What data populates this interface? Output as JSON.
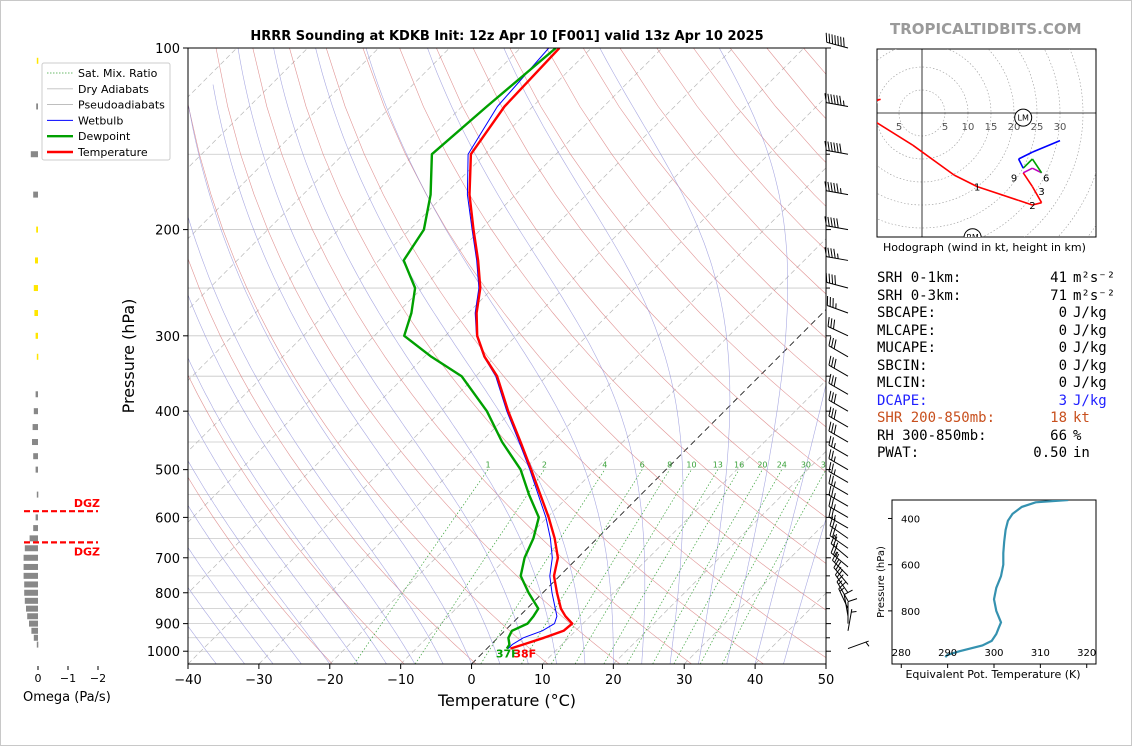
{
  "brand": "TROPICALTIDBITS.COM",
  "colors": {
    "temperature": "#ff0000",
    "dewpoint": "#00a000",
    "wetbulb": "#0000ff",
    "dry_adiabat": "#d97a7a",
    "pseudoadiabat": "#8c8cd8",
    "mixing_ratio": "#3aa23a",
    "dgz": "#ff0000",
    "theta_e": "#3592b0",
    "shear": "#c8501e",
    "dcape": "#2020ff",
    "brand": "#9a9a9a"
  },
  "chart_data": [
    {
      "type": "line",
      "name": "skew-t",
      "title": "HRRR Sounding at KDKB Init: 12z Apr 10 [F001] valid 13z Apr 10 2025",
      "xlabel": "Temperature (°C)",
      "ylabel": "Pressure (hPa)",
      "xlim": [
        -40,
        50
      ],
      "ylim": [
        1050,
        100
      ],
      "y_log_scale": true,
      "skew": true,
      "x_ticks": [
        "−40",
        "−30",
        "−20",
        "−10",
        "0",
        "10",
        "20",
        "30",
        "40",
        "50"
      ],
      "y_ticks": [
        "100",
        "200",
        "300",
        "400",
        "500",
        "600",
        "700",
        "800",
        "900",
        "1000"
      ],
      "legend": {
        "position": "upper-left",
        "entries": [
          "Sat. Mix. Ratio",
          "Dry Adiabats",
          "Pseudoadiabats",
          "Wetbulb",
          "Dewpoint",
          "Temperature"
        ]
      },
      "mixing_ratio_labels": [
        "1",
        "2",
        "4",
        "6",
        "8",
        "10",
        "13",
        "16",
        "20",
        "24",
        "30",
        "36"
      ],
      "surface_labels": {
        "dewpoint": "37F",
        "temperature": "38F"
      },
      "series": [
        {
          "name": "Temperature",
          "points": [
            [
              990,
              3.3
            ],
            [
              975,
              4.5
            ],
            [
              950,
              6.5
            ],
            [
              925,
              8.3
            ],
            [
              900,
              8.5
            ],
            [
              875,
              6.5
            ],
            [
              850,
              4.8
            ],
            [
              800,
              2.0
            ],
            [
              750,
              -0.8
            ],
            [
              700,
              -2.8
            ],
            [
              650,
              -6.0
            ],
            [
              600,
              -9.8
            ],
            [
              550,
              -14.2
            ],
            [
              500,
              -19.0
            ],
            [
              450,
              -24.4
            ],
            [
              400,
              -30.5
            ],
            [
              350,
              -37.0
            ],
            [
              325,
              -41.5
            ],
            [
              300,
              -45.5
            ],
            [
              275,
              -48.8
            ],
            [
              250,
              -51.8
            ],
            [
              225,
              -56.0
            ],
            [
              200,
              -61.0
            ],
            [
              175,
              -66.5
            ],
            [
              150,
              -72.0
            ],
            [
              125,
              -74.0
            ],
            [
              100,
              -74.5
            ]
          ]
        },
        {
          "name": "Wetbulb",
          "points": [
            [
              990,
              3.0
            ],
            [
              975,
              3.0
            ],
            [
              950,
              3.6
            ],
            [
              925,
              5.3
            ],
            [
              900,
              6.0
            ],
            [
              875,
              5.3
            ],
            [
              850,
              4.0
            ],
            [
              800,
              1.3
            ],
            [
              750,
              -1.4
            ],
            [
              700,
              -3.6
            ],
            [
              650,
              -6.6
            ],
            [
              600,
              -10.2
            ],
            [
              550,
              -14.5
            ],
            [
              500,
              -19.2
            ],
            [
              450,
              -24.6
            ],
            [
              400,
              -30.7
            ],
            [
              350,
              -37.2
            ],
            [
              325,
              -41.6
            ],
            [
              300,
              -45.6
            ],
            [
              275,
              -49.0
            ],
            [
              250,
              -52.0
            ],
            [
              225,
              -56.2
            ],
            [
              200,
              -61.2
            ],
            [
              175,
              -66.8
            ],
            [
              150,
              -72.4
            ],
            [
              125,
              -75.0
            ],
            [
              100,
              -76.0
            ]
          ]
        },
        {
          "name": "Dewpoint",
          "points": [
            [
              990,
              2.8
            ],
            [
              975,
              2.6
            ],
            [
              950,
              1.5
            ],
            [
              925,
              1.0
            ],
            [
              900,
              2.2
            ],
            [
              875,
              2.0
            ],
            [
              850,
              1.6
            ],
            [
              800,
              -2.0
            ],
            [
              750,
              -5.5
            ],
            [
              700,
              -7.5
            ],
            [
              650,
              -9.0
            ],
            [
              600,
              -11.2
            ],
            [
              550,
              -15.8
            ],
            [
              500,
              -20.5
            ],
            [
              450,
              -27.0
            ],
            [
              400,
              -33.5
            ],
            [
              350,
              -42.0
            ],
            [
              325,
              -49.0
            ],
            [
              300,
              -55.8
            ],
            [
              275,
              -58.0
            ],
            [
              250,
              -61.0
            ],
            [
              225,
              -66.5
            ],
            [
              200,
              -68.0
            ],
            [
              175,
              -72.0
            ],
            [
              150,
              -77.5
            ],
            [
              125,
              -76.5
            ],
            [
              100,
              -75.0
            ]
          ]
        }
      ]
    },
    {
      "type": "line",
      "name": "hodograph",
      "caption": "Hodograph (wind in kt, height in km)",
      "ring_labels": [
        "5",
        "5",
        "10",
        "15",
        "20",
        "25",
        "30"
      ],
      "points": [
        [
          -9,
          3
        ],
        [
          -12,
          2
        ],
        [
          -10,
          -2
        ],
        [
          -2,
          -7
        ],
        [
          7,
          -13.5
        ],
        [
          12,
          -16
        ],
        [
          21,
          -19
        ],
        [
          24,
          -20
        ],
        [
          26,
          -19.5
        ],
        [
          24,
          -16
        ],
        [
          22,
          -13
        ],
        [
          24,
          -12
        ],
        [
          26,
          -13
        ],
        [
          24,
          -10
        ],
        [
          22,
          -12
        ],
        [
          21,
          -10
        ],
        [
          24,
          -8.5
        ],
        [
          30,
          -6
        ]
      ],
      "height_labels": [
        {
          "label": "1",
          "u": 12,
          "v": -16
        },
        {
          "label": "2",
          "u": 24,
          "v": -20
        },
        {
          "label": "3",
          "u": 26,
          "v": -17
        },
        {
          "label": "6",
          "u": 27,
          "v": -14
        },
        {
          "label": "9",
          "u": 20,
          "v": -14
        }
      ],
      "markers": [
        {
          "label": "LM",
          "u": 22,
          "v": -1
        },
        {
          "label": "RM",
          "u": 11,
          "v": -27
        }
      ]
    },
    {
      "type": "line",
      "name": "theta-e",
      "xlabel": "Equivalent Pot. Temperature (K)",
      "ylabel": "Pressure (hPa)",
      "xlim": [
        278,
        322
      ],
      "ylim": [
        1030,
        320
      ],
      "x_ticks": [
        "280",
        "290",
        "300",
        "310",
        "320"
      ],
      "y_ticks": [
        "400",
        "600",
        "800"
      ],
      "points": [
        [
          1000,
          289.5
        ],
        [
          990,
          290.0
        ],
        [
          975,
          292.5
        ],
        [
          950,
          297.5
        ],
        [
          930,
          299.5
        ],
        [
          900,
          300.5
        ],
        [
          875,
          301.0
        ],
        [
          850,
          301.5
        ],
        [
          800,
          300.5
        ],
        [
          750,
          300.0
        ],
        [
          700,
          300.5
        ],
        [
          650,
          301.5
        ],
        [
          600,
          302.0
        ],
        [
          550,
          302.0
        ],
        [
          500,
          302.2
        ],
        [
          450,
          302.5
        ],
        [
          410,
          303.0
        ],
        [
          380,
          304.0
        ],
        [
          350,
          306.0
        ],
        [
          330,
          309.0
        ],
        [
          320,
          316.0
        ]
      ]
    },
    {
      "type": "bar",
      "name": "omega",
      "xlabel": "Omega (Pa/s)",
      "x_ticks": [
        "0",
        "−1",
        "−2"
      ],
      "dgz_labels": [
        "DGZ",
        "DGZ"
      ],
      "dgz_pressures": [
        586,
        660
      ],
      "bars": [
        {
          "p": 105,
          "value": 0.02,
          "color": "yellow"
        },
        {
          "p": 125,
          "value": 0.03,
          "color": "grey"
        },
        {
          "p": 150,
          "value": 0.12,
          "color": "grey"
        },
        {
          "p": 175,
          "value": 0.08,
          "color": "grey"
        },
        {
          "p": 200,
          "value": 0.03,
          "color": "yellow"
        },
        {
          "p": 225,
          "value": 0.05,
          "color": "yellow"
        },
        {
          "p": 250,
          "value": 0.07,
          "color": "yellow"
        },
        {
          "p": 275,
          "value": 0.06,
          "color": "yellow"
        },
        {
          "p": 300,
          "value": 0.04,
          "color": "yellow"
        },
        {
          "p": 325,
          "value": 0.02,
          "color": "yellow"
        },
        {
          "p": 375,
          "value": 0.04,
          "color": "grey"
        },
        {
          "p": 400,
          "value": 0.07,
          "color": "grey"
        },
        {
          "p": 425,
          "value": 0.09,
          "color": "grey"
        },
        {
          "p": 450,
          "value": 0.1,
          "color": "grey"
        },
        {
          "p": 475,
          "value": 0.08,
          "color": "grey"
        },
        {
          "p": 500,
          "value": 0.04,
          "color": "grey"
        },
        {
          "p": 550,
          "value": 0.02,
          "color": "grey"
        },
        {
          "p": 600,
          "value": 0.04,
          "color": "grey"
        },
        {
          "p": 625,
          "value": 0.08,
          "color": "grey"
        },
        {
          "p": 650,
          "value": 0.14,
          "color": "grey"
        },
        {
          "p": 675,
          "value": 0.22,
          "color": "grey"
        },
        {
          "p": 700,
          "value": 0.24,
          "color": "grey"
        },
        {
          "p": 725,
          "value": 0.24,
          "color": "grey"
        },
        {
          "p": 750,
          "value": 0.24,
          "color": "grey"
        },
        {
          "p": 775,
          "value": 0.23,
          "color": "grey"
        },
        {
          "p": 800,
          "value": 0.23,
          "color": "grey"
        },
        {
          "p": 825,
          "value": 0.22,
          "color": "grey"
        },
        {
          "p": 850,
          "value": 0.2,
          "color": "grey"
        },
        {
          "p": 875,
          "value": 0.18,
          "color": "grey"
        },
        {
          "p": 900,
          "value": 0.15,
          "color": "grey"
        },
        {
          "p": 925,
          "value": 0.11,
          "color": "grey"
        },
        {
          "p": 950,
          "value": 0.07,
          "color": "grey"
        },
        {
          "p": 975,
          "value": 0.02,
          "color": "grey"
        }
      ]
    }
  ],
  "winds": [
    {
      "p": 100,
      "dir": 285,
      "kt": 70
    },
    {
      "p": 125,
      "dir": 280,
      "kt": 65
    },
    {
      "p": 150,
      "dir": 280,
      "kt": 60
    },
    {
      "p": 175,
      "dir": 280,
      "kt": 55
    },
    {
      "p": 200,
      "dir": 280,
      "kt": 50
    },
    {
      "p": 225,
      "dir": 280,
      "kt": 45
    },
    {
      "p": 250,
      "dir": 285,
      "kt": 40
    },
    {
      "p": 275,
      "dir": 290,
      "kt": 35
    },
    {
      "p": 300,
      "dir": 295,
      "kt": 30
    },
    {
      "p": 325,
      "dir": 300,
      "kt": 30
    },
    {
      "p": 350,
      "dir": 300,
      "kt": 30
    },
    {
      "p": 375,
      "dir": 300,
      "kt": 30
    },
    {
      "p": 400,
      "dir": 300,
      "kt": 30
    },
    {
      "p": 425,
      "dir": 300,
      "kt": 30
    },
    {
      "p": 450,
      "dir": 300,
      "kt": 30
    },
    {
      "p": 475,
      "dir": 300,
      "kt": 25
    },
    {
      "p": 500,
      "dir": 300,
      "kt": 25
    },
    {
      "p": 525,
      "dir": 300,
      "kt": 25
    },
    {
      "p": 550,
      "dir": 300,
      "kt": 25
    },
    {
      "p": 575,
      "dir": 300,
      "kt": 25
    },
    {
      "p": 600,
      "dir": 300,
      "kt": 25
    },
    {
      "p": 625,
      "dir": 300,
      "kt": 25
    },
    {
      "p": 650,
      "dir": 305,
      "kt": 25
    },
    {
      "p": 675,
      "dir": 305,
      "kt": 25
    },
    {
      "p": 700,
      "dir": 310,
      "kt": 25
    },
    {
      "p": 725,
      "dir": 310,
      "kt": 25
    },
    {
      "p": 750,
      "dir": 315,
      "kt": 20
    },
    {
      "p": 775,
      "dir": 320,
      "kt": 20
    },
    {
      "p": 800,
      "dir": 325,
      "kt": 20
    },
    {
      "p": 825,
      "dir": 330,
      "kt": 15
    },
    {
      "p": 850,
      "dir": 335,
      "kt": 15
    },
    {
      "p": 875,
      "dir": 350,
      "kt": 10
    },
    {
      "p": 900,
      "dir": 0,
      "kt": 10
    },
    {
      "p": 925,
      "dir": 10,
      "kt": 5
    },
    {
      "p": 990,
      "dir": 70,
      "kt": 5
    }
  ],
  "stats": [
    {
      "label": "SRH 0-1km:",
      "value": "41",
      "unit": "m²s⁻²",
      "color": "#000000"
    },
    {
      "label": "SRH 0-3km:",
      "value": "71",
      "unit": "m²s⁻²",
      "color": "#000000"
    },
    {
      "label": "SBCAPE:",
      "value": "0",
      "unit": "J/kg",
      "color": "#000000"
    },
    {
      "label": "MLCAPE:",
      "value": "0",
      "unit": "J/kg",
      "color": "#000000"
    },
    {
      "label": "MUCAPE:",
      "value": "0",
      "unit": "J/kg",
      "color": "#000000"
    },
    {
      "label": "SBCIN:",
      "value": "0",
      "unit": "J/kg",
      "color": "#000000"
    },
    {
      "label": "MLCIN:",
      "value": "0",
      "unit": "J/kg",
      "color": "#000000"
    },
    {
      "label": "DCAPE:",
      "value": "3",
      "unit": "J/kg",
      "color": "#2020ff"
    },
    {
      "label": "SHR 200-850mb:",
      "value": "18",
      "unit": "kt",
      "color": "#c8501e"
    },
    {
      "label": "RH 300-850mb:",
      "value": "66",
      "unit": "%",
      "color": "#000000"
    },
    {
      "label": "PWAT:",
      "value": "0.50",
      "unit": "in",
      "color": "#000000"
    }
  ]
}
